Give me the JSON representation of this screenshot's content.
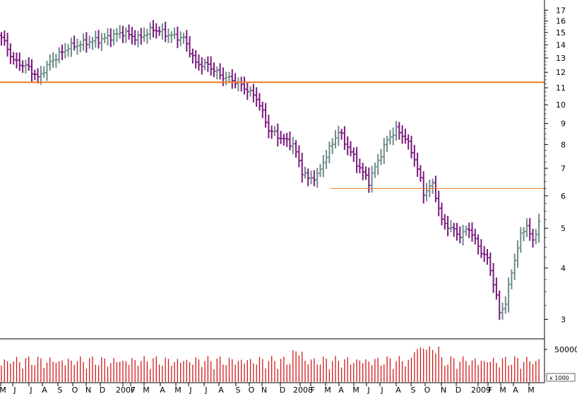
{
  "chart_data": {
    "type": "ohlc-bar",
    "y_scale": "log",
    "ylim": [
      2.7,
      18.0
    ],
    "y_ticks": [
      3,
      4,
      5,
      6,
      7,
      8,
      9,
      10,
      11,
      12,
      13,
      14,
      15,
      16,
      17
    ],
    "x_labels": [
      "M",
      "J",
      "J",
      "A",
      "S",
      "O",
      "N",
      "D",
      "2007",
      "F",
      "M",
      "A",
      "M",
      "J",
      "J",
      "A",
      "S",
      "O",
      "N",
      "D",
      "2008",
      "F",
      "M",
      "A",
      "M",
      "J",
      "J",
      "A",
      "S",
      "O",
      "N",
      "D",
      "2009",
      "F",
      "M",
      "A",
      "M"
    ],
    "volume_axis_label": "50000",
    "volume_unit_label": "x 1000",
    "colors": {
      "up_bar": "#6e8c8a",
      "down_bar": "#7a1a7e",
      "horizontal_line": "#ee7b2a",
      "volume_bar": "#d11919",
      "axis": "#000000"
    },
    "horizontal_lines": [
      {
        "value": 11.35,
        "from_label": "M",
        "style": "thick"
      },
      {
        "value": 6.25,
        "from_label": "M (2008)",
        "style": "thin"
      }
    ],
    "price_anchors": [
      {
        "week": 0,
        "close": 14.6
      },
      {
        "week": 4,
        "close": 12.8
      },
      {
        "week": 9,
        "close": 12.3
      },
      {
        "week": 12,
        "close": 11.6
      },
      {
        "week": 16,
        "close": 12.7
      },
      {
        "week": 22,
        "close": 13.8
      },
      {
        "week": 28,
        "close": 14.2
      },
      {
        "week": 34,
        "close": 14.5
      },
      {
        "week": 40,
        "close": 15.0
      },
      {
        "week": 45,
        "close": 14.5
      },
      {
        "week": 50,
        "close": 15.3
      },
      {
        "week": 55,
        "close": 14.8
      },
      {
        "week": 60,
        "close": 14.5
      },
      {
        "week": 64,
        "close": 12.6
      },
      {
        "week": 68,
        "close": 12.5
      },
      {
        "week": 72,
        "close": 11.8
      },
      {
        "week": 76,
        "close": 11.5
      },
      {
        "week": 80,
        "close": 11.0
      },
      {
        "week": 84,
        "close": 10.4
      },
      {
        "week": 88,
        "close": 8.7
      },
      {
        "week": 92,
        "close": 8.3
      },
      {
        "week": 96,
        "close": 8.0
      },
      {
        "week": 99,
        "close": 6.9
      },
      {
        "week": 101,
        "close": 6.6
      },
      {
        "week": 104,
        "close": 6.7
      },
      {
        "week": 108,
        "close": 7.8
      },
      {
        "week": 111,
        "close": 8.6
      },
      {
        "week": 114,
        "close": 7.9
      },
      {
        "week": 118,
        "close": 7.0
      },
      {
        "week": 121,
        "close": 6.5
      },
      {
        "week": 124,
        "close": 7.3
      },
      {
        "week": 127,
        "close": 8.2
      },
      {
        "week": 130,
        "close": 8.7
      },
      {
        "week": 133,
        "close": 8.3
      },
      {
        "week": 136,
        "close": 7.4
      },
      {
        "week": 139,
        "close": 6.1
      },
      {
        "week": 142,
        "close": 6.4
      },
      {
        "week": 145,
        "close": 5.2
      },
      {
        "week": 148,
        "close": 5.0
      },
      {
        "week": 151,
        "close": 4.8
      },
      {
        "week": 154,
        "close": 5.0
      },
      {
        "week": 157,
        "close": 4.5
      },
      {
        "week": 160,
        "close": 4.2
      },
      {
        "week": 162,
        "close": 3.7
      },
      {
        "week": 164,
        "close": 3.1
      },
      {
        "week": 166,
        "close": 3.3
      },
      {
        "week": 168,
        "close": 3.9
      },
      {
        "week": 171,
        "close": 4.8
      },
      {
        "week": 173,
        "close": 5.1
      },
      {
        "week": 175,
        "close": 4.6
      },
      {
        "week": 177,
        "close": 5.2
      }
    ]
  }
}
